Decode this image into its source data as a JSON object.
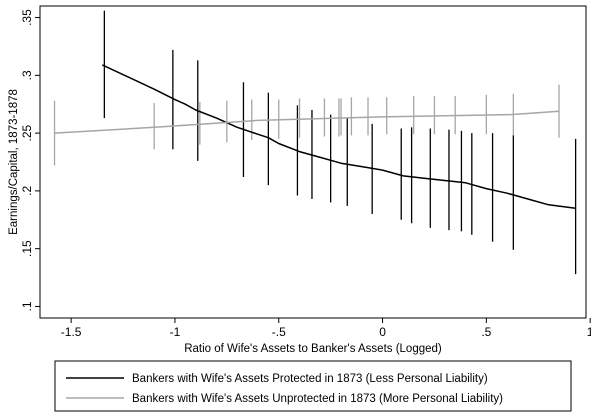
{
  "chart_data": {
    "type": "line",
    "title": "",
    "xlabel": "Ratio of Wife's Assets to Banker's Assets (Logged)",
    "ylabel": "Earnings/Capital, 1873-1878",
    "xlim": [
      -1.65,
      0.98
    ],
    "ylim": [
      0.09,
      0.36
    ],
    "x_ticks": [
      -1.5,
      -1,
      -0.5,
      0,
      0.5,
      1
    ],
    "x_tick_labels": [
      "-1.5",
      "-1",
      "-.5",
      "0",
      ".5",
      "1"
    ],
    "y_ticks": [
      0.1,
      0.15,
      0.2,
      0.25,
      0.3,
      0.35
    ],
    "y_tick_labels": [
      ".1",
      ".15",
      ".2",
      ".25",
      ".3",
      ".35"
    ],
    "grid": false,
    "legend_position": "bottom",
    "series": [
      {
        "name": "Bankers with Wife's Assets Protected in 1873 (Less Personal Liability)",
        "color": "#000000",
        "x": [
          -1.35,
          -1.1,
          -1.0,
          -0.95,
          -0.9,
          -0.8,
          -0.7,
          -0.6,
          -0.55,
          -0.5,
          -0.4,
          -0.3,
          -0.2,
          -0.1,
          0.0,
          0.1,
          0.2,
          0.3,
          0.4,
          0.5,
          0.6,
          0.7,
          0.8,
          0.93
        ],
        "y": [
          0.309,
          0.288,
          0.279,
          0.275,
          0.27,
          0.263,
          0.255,
          0.249,
          0.246,
          0.241,
          0.234,
          0.229,
          0.224,
          0.221,
          0.218,
          0.213,
          0.211,
          0.209,
          0.207,
          0.202,
          0.198,
          0.193,
          0.188,
          0.185
        ]
      },
      {
        "name": "Bankers with Wife's Assets Unprotected in 1873 (More Personal Liability)",
        "color": "#a6a6a6",
        "x": [
          -1.58,
          -1.1,
          -0.6,
          0.0,
          0.3,
          0.62,
          0.85
        ],
        "y": [
          0.25,
          0.255,
          0.261,
          0.264,
          0.265,
          0.266,
          0.269
        ]
      }
    ],
    "error_bars": [
      {
        "series": "Bankers with Wife's Assets Protected in 1873 (Less Personal Liability)",
        "x": [
          -1.34,
          -1.01,
          -0.89,
          -0.67,
          -0.55,
          -0.41,
          -0.34,
          -0.25,
          -0.17,
          -0.05,
          0.09,
          0.14,
          0.23,
          0.32,
          0.38,
          0.43,
          0.53,
          0.63,
          0.93
        ],
        "low": [
          0.263,
          0.236,
          0.226,
          0.212,
          0.205,
          0.196,
          0.193,
          0.19,
          0.187,
          0.18,
          0.175,
          0.172,
          0.168,
          0.166,
          0.165,
          0.162,
          0.156,
          0.149,
          0.128
        ],
        "high": [
          0.356,
          0.322,
          0.313,
          0.294,
          0.285,
          0.274,
          0.27,
          0.266,
          0.263,
          0.258,
          0.254,
          0.255,
          0.254,
          0.253,
          0.252,
          0.25,
          0.25,
          0.248,
          0.245
        ]
      },
      {
        "series": "Bankers with Wife's Assets Unprotected in 1873 (More Personal Liability)",
        "x": [
          -1.58,
          -1.1,
          -0.88,
          -0.75,
          -0.63,
          -0.5,
          -0.4,
          -0.28,
          -0.21,
          -0.2,
          -0.15,
          -0.07,
          0.02,
          0.15,
          0.25,
          0.35,
          0.5,
          0.63,
          0.85
        ],
        "low": [
          0.222,
          0.236,
          0.24,
          0.242,
          0.244,
          0.245,
          0.246,
          0.247,
          0.247,
          0.248,
          0.248,
          0.248,
          0.249,
          0.249,
          0.249,
          0.249,
          0.249,
          0.248,
          0.246
        ],
        "high": [
          0.278,
          0.276,
          0.277,
          0.278,
          0.279,
          0.279,
          0.28,
          0.28,
          0.28,
          0.28,
          0.281,
          0.281,
          0.281,
          0.282,
          0.282,
          0.282,
          0.283,
          0.284,
          0.292
        ]
      }
    ]
  }
}
